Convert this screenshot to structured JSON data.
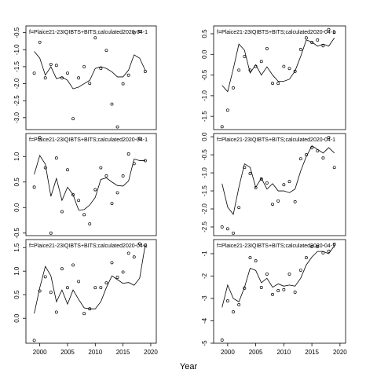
{
  "xlabel": "Year",
  "chart_data": [
    {
      "type": "line",
      "title": "f=Plaice21-23IQIBTS+BITS;calculated2020-04-1",
      "x": [
        1999,
        2000,
        2001,
        2002,
        2003,
        2004,
        2005,
        2006,
        2007,
        2008,
        2009,
        2010,
        2011,
        2012,
        2013,
        2014,
        2015,
        2016,
        2017,
        2018,
        2019
      ],
      "xlim": [
        1997.5,
        2021
      ],
      "xticks": [
        2000,
        2005,
        2010,
        2015,
        2020
      ],
      "ylim": [
        -3.35,
        -0.3
      ],
      "yticks": [
        -0.5,
        {
          "value": -1,
          "label": "-1.0"
        },
        -1.5,
        {
          "value": -2,
          "label": "-2.0"
        },
        -2.5,
        {
          "value": -3,
          "label": "-3.0"
        }
      ],
      "series": [
        {
          "kind": "line",
          "color": "#000000",
          "values": [
            -1.05,
            -1.25,
            -1.75,
            -1.5,
            -1.85,
            -1.8,
            -1.9,
            -2.15,
            -2.1,
            -2.0,
            -1.9,
            -1.55,
            -1.5,
            -1.55,
            -1.65,
            -1.8,
            -1.8,
            -1.6,
            -1.15,
            -1.25,
            -1.6
          ]
        },
        {
          "kind": "scatter",
          "color": "#000000",
          "values": [
            -1.69,
            -0.78,
            -1.83,
            -1.43,
            -1.46,
            -1.83,
            -1.69,
            -3.03,
            -1.83,
            -1.5,
            -1.99,
            -0.65,
            -1.55,
            -1.02,
            -2.6,
            -3.27,
            -2.0,
            -1.75,
            -0.5,
            -0.46,
            -1.64
          ]
        }
      ]
    },
    {
      "type": "line",
      "title": "f=Plaice21-23IQIBTS+BITS;calculated2020-04-1",
      "x": [
        1999,
        2000,
        2001,
        2002,
        2003,
        2004,
        2005,
        2006,
        2007,
        2008,
        2009,
        2010,
        2011,
        2012,
        2013,
        2014,
        2015,
        2016,
        2017,
        2018,
        2019
      ],
      "xlim": [
        1997.5,
        2021
      ],
      "xticks": [
        2000,
        2005,
        2010,
        2015,
        2020
      ],
      "ylim": [
        -1.82,
        0.69
      ],
      "yticks": [
        0.5,
        {
          "value": 0,
          "label": "0.0"
        },
        -0.5,
        {
          "value": -1,
          "label": "-1.0"
        },
        -1.5
      ],
      "series": [
        {
          "kind": "line",
          "color": "#000000",
          "values": [
            -0.75,
            -0.9,
            -0.35,
            0.25,
            0.1,
            -0.45,
            -0.25,
            -0.5,
            -0.3,
            -0.5,
            -0.65,
            -0.65,
            -0.6,
            -0.4,
            -0.05,
            0.35,
            0.3,
            0.2,
            0.25,
            0.2,
            0.4
          ]
        },
        {
          "kind": "scatter",
          "color": "#000000",
          "values": [
            -1.75,
            -1.35,
            -0.81,
            -0.38,
            -0.05,
            -0.38,
            -0.29,
            -0.17,
            0.14,
            -0.7,
            -0.7,
            -0.29,
            -0.34,
            -0.41,
            0.12,
            0.4,
            0.29,
            0.35,
            0.21,
            0.6,
            0.54
          ]
        }
      ]
    },
    {
      "type": "line",
      "title": "f=Plaice21-23IQIBTS+BITS;calculated2020-04-1",
      "x": [
        1999,
        2000,
        2001,
        2002,
        2003,
        2004,
        2005,
        2006,
        2007,
        2008,
        2009,
        2010,
        2011,
        2012,
        2013,
        2014,
        2015,
        2016,
        2017,
        2018,
        2019
      ],
      "xlim": [
        1997.5,
        2021
      ],
      "xticks": [
        2000,
        2005,
        2010,
        2015,
        2020
      ],
      "ylim": [
        -0.55,
        1.45
      ],
      "yticks": [
        {
          "value": 1,
          "label": "1.0"
        },
        0.5,
        {
          "value": 0,
          "label": "0.0"
        },
        -0.5
      ],
      "series": [
        {
          "kind": "line",
          "color": "#000000",
          "values": [
            0.65,
            1.02,
            0.85,
            0.22,
            0.57,
            0.14,
            0.4,
            0.25,
            -0.05,
            -0.04,
            0.05,
            0.2,
            0.55,
            0.58,
            0.5,
            0.43,
            0.42,
            0.52,
            0.95,
            0.92,
            0.92
          ]
        },
        {
          "kind": "scatter",
          "color": "#000000",
          "values": [
            0.4,
            1.37,
            0.78,
            -0.5,
            0.97,
            -0.08,
            0.74,
            0.25,
            0.14,
            -0.14,
            -0.32,
            0.35,
            0.78,
            0.62,
            0.08,
            0.29,
            0.62,
            1.05,
            0.86,
            1.35,
            0.92
          ]
        }
      ]
    },
    {
      "type": "line",
      "title": "f=Plaice21-23IQIBTS+BITS;calculated2020-04-1",
      "x": [
        1999,
        2000,
        2001,
        2002,
        2003,
        2004,
        2005,
        2006,
        2007,
        2008,
        2009,
        2010,
        2011,
        2012,
        2013,
        2014,
        2015,
        2016,
        2017,
        2018,
        2019
      ],
      "xlim": [
        1997.5,
        2021
      ],
      "xticks": [
        2000,
        2005,
        2010,
        2015,
        2020
      ],
      "ylim": [
        -2.74,
        0.09
      ],
      "yticks": [
        {
          "value": 0,
          "label": "0.0"
        },
        -0.5,
        {
          "value": -1,
          "label": "-1.0"
        },
        -1.5,
        {
          "value": -2,
          "label": "-2.0"
        },
        -2.5
      ],
      "series": [
        {
          "kind": "line",
          "color": "#000000",
          "values": [
            -1.3,
            -1.95,
            -2.15,
            -1.4,
            -0.75,
            -0.85,
            -1.4,
            -1.15,
            -1.45,
            -1.3,
            -1.5,
            -1.5,
            -1.55,
            -1.45,
            -0.95,
            -0.55,
            -0.25,
            -0.35,
            -0.45,
            -0.3,
            -0.45
          ]
        },
        {
          "kind": "scatter",
          "color": "#000000",
          "values": [
            -2.5,
            -2.55,
            -2.67,
            -1.96,
            -0.85,
            -1.02,
            -1.41,
            -1.17,
            -1.28,
            -1.87,
            -1.78,
            -1.33,
            -1.24,
            -1.8,
            -0.61,
            -0.5,
            -0.3,
            -0.39,
            -0.59,
            -0.02,
            -0.85
          ]
        }
      ]
    },
    {
      "type": "line",
      "title": "f=Plaice21-23IQIBTS+BITS;calculated2020-04-1",
      "x": [
        1999,
        2000,
        2001,
        2002,
        2003,
        2004,
        2005,
        2006,
        2007,
        2008,
        2009,
        2010,
        2011,
        2012,
        2013,
        2014,
        2015,
        2016,
        2017,
        2018,
        2019
      ],
      "xlim": [
        1997.5,
        2021
      ],
      "xticks": [
        2000,
        2005,
        2010,
        2015,
        2020
      ],
      "ylim": [
        -0.53,
        1.67
      ],
      "yticks": [
        1.5,
        {
          "value": 1,
          "label": "1.0"
        },
        0.5,
        {
          "value": 0,
          "label": "0.0"
        }
      ],
      "series": [
        {
          "kind": "line",
          "color": "#000000",
          "values": [
            0.1,
            0.65,
            1.1,
            0.9,
            0.35,
            0.6,
            0.3,
            0.6,
            0.4,
            0.22,
            0.2,
            0.2,
            0.35,
            0.65,
            0.9,
            0.82,
            0.74,
            0.76,
            0.7,
            0.85,
            1.55
          ]
        },
        {
          "kind": "scatter",
          "color": "#000000",
          "values": [
            -0.47,
            0.58,
            0.88,
            0.55,
            0.13,
            1.05,
            0.65,
            1.13,
            0.78,
            0.1,
            0.2,
            0.65,
            0.65,
            0.75,
            1.18,
            0.87,
            0.98,
            1.38,
            1.3,
            1.58,
            1.55
          ]
        }
      ]
    },
    {
      "type": "line",
      "title": "f=Plaice21-23IQIBTS+BITS;calculated2020-04-1",
      "x": [
        1999,
        2000,
        2001,
        2002,
        2003,
        2004,
        2005,
        2006,
        2007,
        2008,
        2009,
        2010,
        2011,
        2012,
        2013,
        2014,
        2015,
        2016,
        2017,
        2018,
        2019
      ],
      "xlim": [
        1997.5,
        2021
      ],
      "xticks": [
        2000,
        2005,
        2010,
        2015,
        2020
      ],
      "ylim": [
        -5,
        -0.37
      ],
      "yticks": [
        -1,
        -2,
        -3,
        -4,
        -5
      ],
      "series": [
        {
          "kind": "line",
          "color": "#000000",
          "values": [
            -3.4,
            -2.4,
            -3.0,
            -3.15,
            -2.5,
            -1.65,
            -1.75,
            -2.3,
            -2.1,
            -2.5,
            -2.35,
            -2.45,
            -2.4,
            -2.45,
            -2.1,
            -1.5,
            -1.15,
            -0.9,
            -0.9,
            -1.0,
            -0.65
          ]
        },
        {
          "kind": "scatter",
          "color": "#000000",
          "values": [
            -4.86,
            -3.11,
            -3.6,
            -3.28,
            -2.54,
            -1.18,
            -1.32,
            -2.51,
            -1.91,
            -2.82,
            -2.65,
            -2.61,
            -1.91,
            -2.72,
            -1.74,
            -1.18,
            -0.68,
            -0.68,
            -0.96,
            -0.89,
            -0.58
          ]
        }
      ]
    }
  ]
}
